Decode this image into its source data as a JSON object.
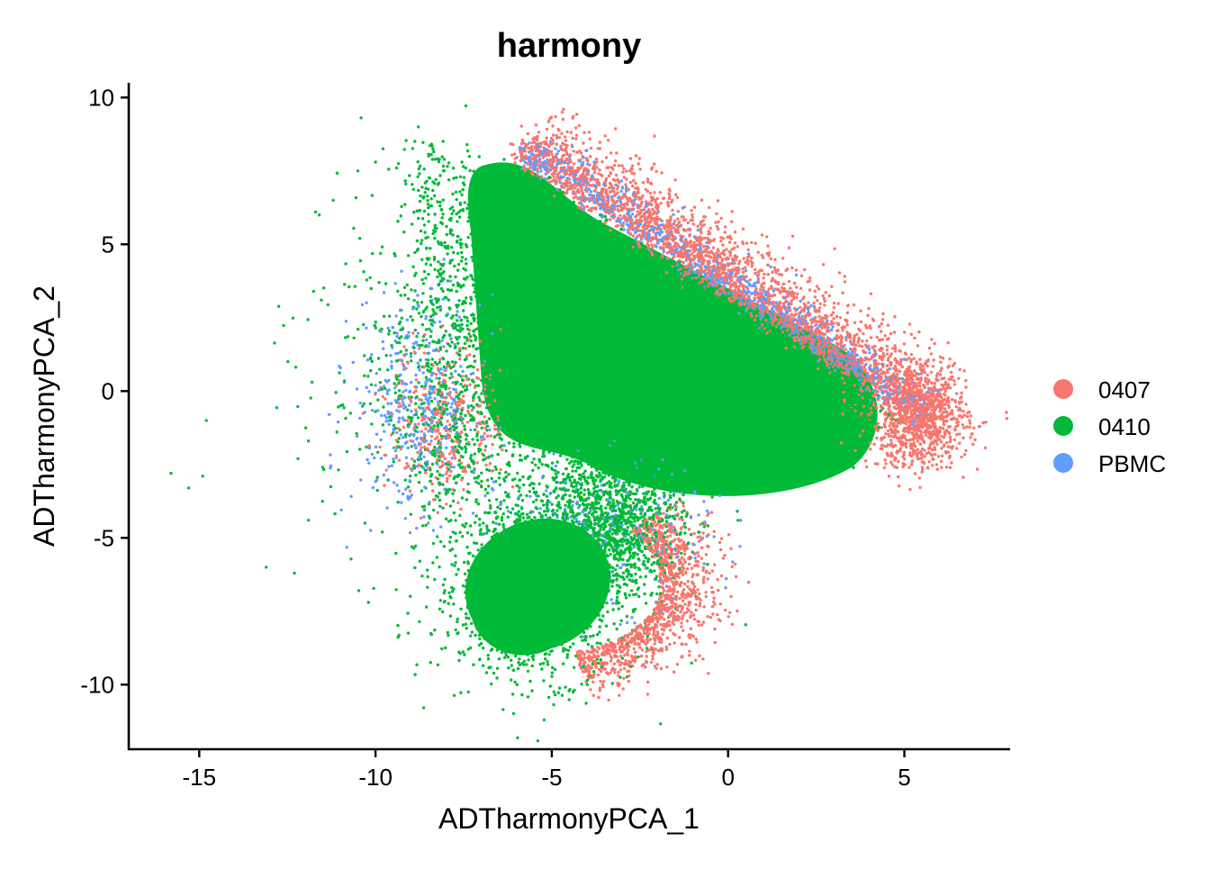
{
  "chart_data": {
    "type": "scatter",
    "title": "harmony",
    "xlabel": "ADTharmonyPCA_1",
    "ylabel": "ADTharmonyPCA_2",
    "xlim": [
      -17,
      8
    ],
    "ylim": [
      -12.2,
      10.5
    ],
    "x_ticks": [
      -15,
      -10,
      -5,
      0,
      5
    ],
    "x_tick_labels": [
      "-15",
      "-10",
      "-5",
      "0",
      "5"
    ],
    "y_ticks": [
      -10,
      -5,
      0,
      5,
      10
    ],
    "y_tick_labels": [
      "-10",
      "-5",
      "0",
      "5",
      "10"
    ],
    "grid": false,
    "legend_position": "right",
    "series": [
      {
        "name": "0407",
        "color": "#F8766D",
        "clusters": [
          {
            "region": "upper triangle",
            "center": [
              -2.2,
              1.5
            ],
            "extent_x": [
              -7.5,
              6.9
            ],
            "extent_y": [
              -4.5,
              9.5
            ]
          },
          {
            "region": "lower blob",
            "center": [
              -4.5,
              -6.5
            ],
            "extent_x": [
              -8,
              0
            ],
            "extent_y": [
              -10,
              -3
            ]
          }
        ]
      },
      {
        "name": "0410",
        "color": "#00BA38",
        "clusters": [
          {
            "region": "upper triangle",
            "center": [
              -2.2,
              1.5
            ],
            "extent_x": [
              -8.5,
              4.5
            ],
            "extent_y": [
              -4.5,
              8
            ]
          },
          {
            "region": "lower blob",
            "center": [
              -5.5,
              -6.5
            ],
            "extent_x": [
              -8,
              -2.5
            ],
            "extent_y": [
              -11.2,
              -3
            ]
          },
          {
            "region": "sparse left outliers",
            "center": [
              -9,
              -1
            ],
            "extent_x": [
              -15.8,
              -7
            ],
            "extent_y": [
              -7,
              7.8
            ]
          }
        ]
      },
      {
        "name": "PBMC",
        "color": "#619CFF",
        "clusters": [
          {
            "region": "upper triangle",
            "center": [
              -2.2,
              1.5
            ],
            "extent_x": [
              -10.5,
              6
            ],
            "extent_y": [
              -5,
              8.5
            ]
          },
          {
            "region": "lower blob",
            "center": [
              -5,
              -6.5
            ],
            "extent_x": [
              -8,
              -2
            ],
            "extent_y": [
              -9.8,
              -3
            ]
          }
        ]
      }
    ]
  }
}
